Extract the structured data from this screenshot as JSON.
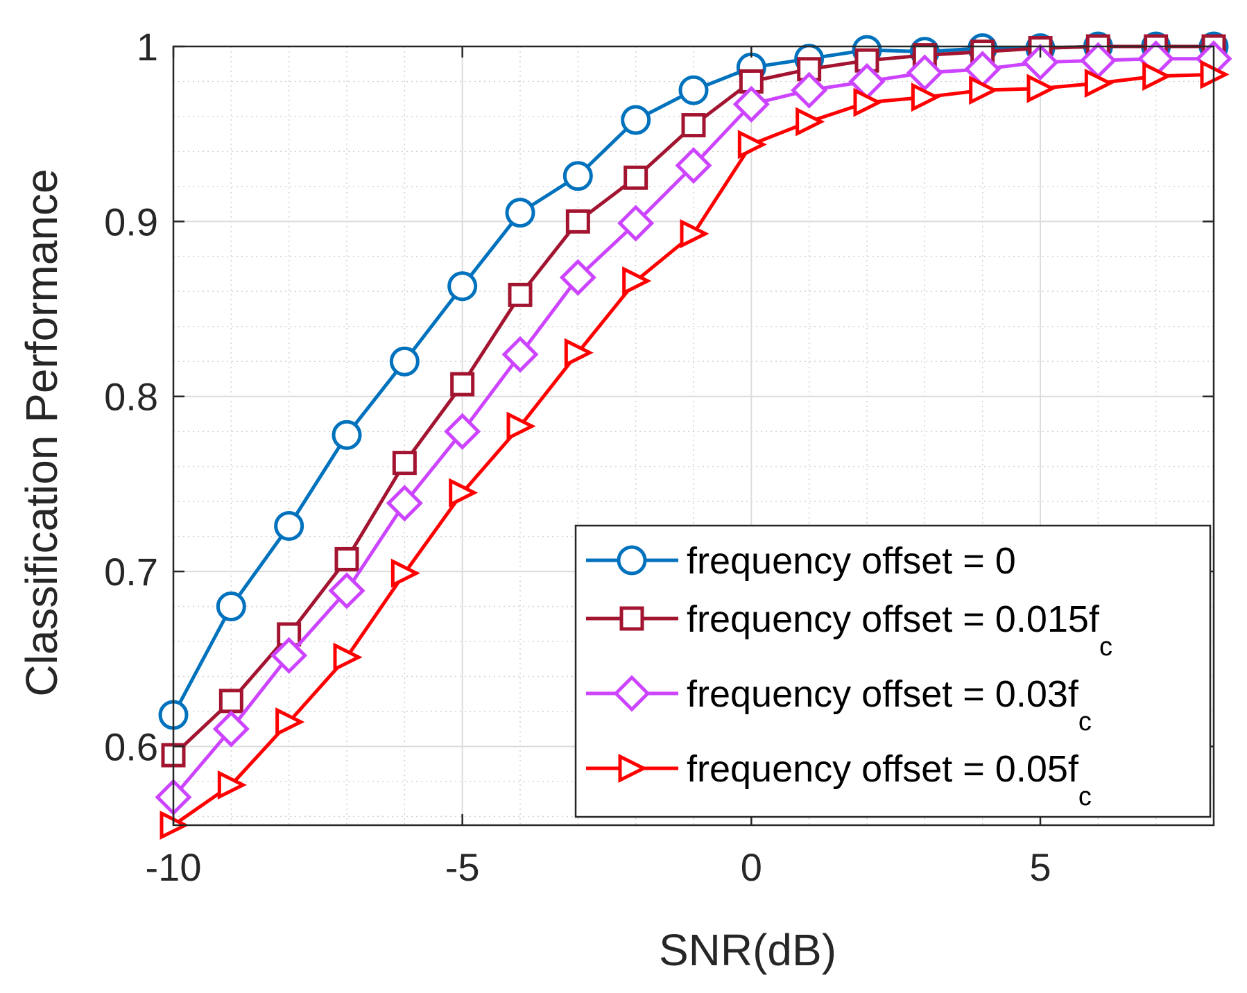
{
  "chart_data": {
    "type": "line",
    "title": "",
    "xlabel": "SNR(dB)",
    "ylabel": "Classification Performance",
    "xlim": [
      -10,
      8
    ],
    "ylim": [
      0.555,
      1.0
    ],
    "grid": true,
    "minor_grid": true,
    "legend_position": "bottom-right",
    "x": [
      -10,
      -9,
      -8,
      -7,
      -6,
      -5,
      -4,
      -3,
      -2,
      -1,
      0,
      1,
      2,
      3,
      4,
      5,
      6,
      7,
      8
    ],
    "xticks": [
      {
        "value": -10,
        "label": "-10"
      },
      {
        "value": -5,
        "label": "-5"
      },
      {
        "value": 0,
        "label": "0"
      },
      {
        "value": 5,
        "label": "5"
      }
    ],
    "yticks": [
      {
        "value": 0.6,
        "label": "0.6"
      },
      {
        "value": 0.7,
        "label": "0.7"
      },
      {
        "value": 0.8,
        "label": "0.8"
      },
      {
        "value": 0.9,
        "label": "0.9"
      },
      {
        "value": 1.0,
        "label": "1"
      }
    ],
    "series": [
      {
        "name": "frequency offset = 0",
        "label_main": "frequency offset = 0",
        "label_sub": "",
        "color": "#0072BD",
        "marker": "circle",
        "values": [
          0.618,
          0.68,
          0.726,
          0.778,
          0.82,
          0.863,
          0.905,
          0.926,
          0.958,
          0.975,
          0.988,
          0.993,
          0.998,
          0.997,
          0.999,
          0.999,
          1.0,
          1.0,
          1.0
        ]
      },
      {
        "name": "frequency offset = 0.015fc",
        "label_main": "frequency offset = 0.015f",
        "label_sub": "c",
        "color": "#A2142F",
        "marker": "square",
        "values": [
          0.595,
          0.626,
          0.664,
          0.707,
          0.762,
          0.807,
          0.858,
          0.9,
          0.925,
          0.955,
          0.98,
          0.987,
          0.992,
          0.995,
          0.997,
          0.999,
          1.0,
          1.0,
          1.0
        ]
      },
      {
        "name": "frequency offset = 0.03fc",
        "label_main": "frequency offset = 0.03f",
        "label_sub": "c",
        "color": "#CC44FF",
        "marker": "diamond",
        "values": [
          0.571,
          0.61,
          0.652,
          0.689,
          0.739,
          0.78,
          0.824,
          0.868,
          0.899,
          0.932,
          0.967,
          0.975,
          0.98,
          0.985,
          0.987,
          0.991,
          0.992,
          0.993,
          0.993
        ]
      },
      {
        "name": "frequency offset = 0.05fc",
        "label_main": "frequency offset = 0.05f",
        "label_sub": "c",
        "color": "#FF0000",
        "marker": "triangle-right",
        "values": [
          0.555,
          0.578,
          0.614,
          0.651,
          0.699,
          0.745,
          0.783,
          0.825,
          0.866,
          0.893,
          0.944,
          0.957,
          0.968,
          0.971,
          0.975,
          0.976,
          0.979,
          0.983,
          0.984
        ]
      }
    ]
  }
}
